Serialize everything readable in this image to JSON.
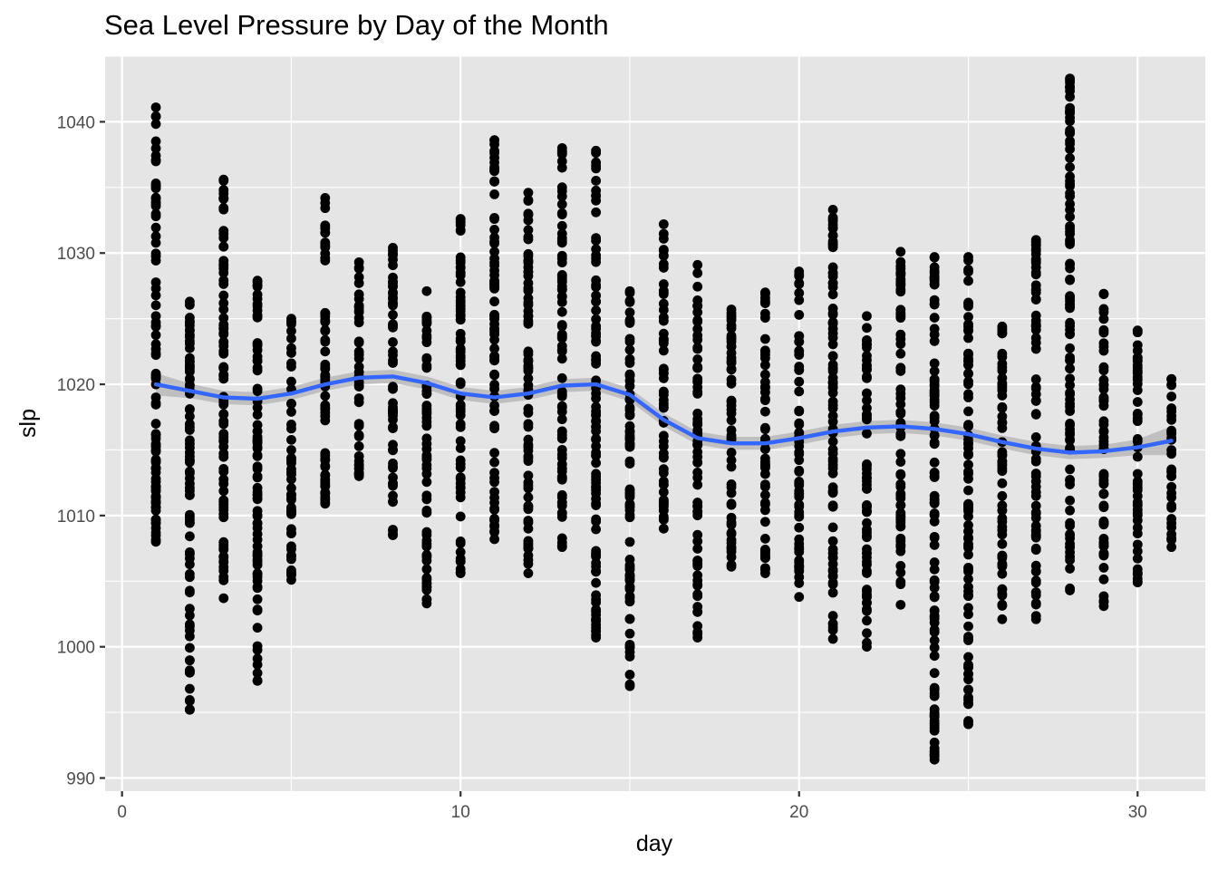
{
  "chart_data": {
    "type": "scatter",
    "title": "Sea Level Pressure by Day of the Month",
    "xlabel": "day",
    "ylabel": "slp",
    "xlim": [
      -0.5,
      32.0
    ],
    "ylim": [
      989.0,
      1045.0
    ],
    "x_ticks": [
      0,
      10,
      20,
      30
    ],
    "y_ticks": [
      990,
      1000,
      1010,
      1020,
      1030,
      1040
    ],
    "grid": true,
    "legend": "none",
    "colors": {
      "panel": "#e5e5e5",
      "grid": "#ffffff",
      "points": "#000000",
      "smooth": "#3366ff",
      "band": "#b2b2b2"
    },
    "point_ranges": [
      {
        "x": 1,
        "low": 1008,
        "high": 1041.1
      },
      {
        "x": 2,
        "low": 995.2,
        "high": 1026.3
      },
      {
        "x": 3,
        "low": 1003.7,
        "high": 1035.6
      },
      {
        "x": 4,
        "low": 997.4,
        "high": 1027.9
      },
      {
        "x": 5,
        "low": 1005.1,
        "high": 1025
      },
      {
        "x": 6,
        "low": 1010.9,
        "high": 1034.2
      },
      {
        "x": 7,
        "low": 1013,
        "high": 1029.3
      },
      {
        "x": 8,
        "low": 1008.5,
        "high": 1030.4
      },
      {
        "x": 9,
        "low": 1003.3,
        "high": 1027.1
      },
      {
        "x": 10,
        "low": 1005.6,
        "high": 1032.6
      },
      {
        "x": 11,
        "low": 1008.2,
        "high": 1038.6
      },
      {
        "x": 12,
        "low": 1005.6,
        "high": 1034.6
      },
      {
        "x": 13,
        "low": 1007.6,
        "high": 1038
      },
      {
        "x": 14,
        "low": 1000.7,
        "high": 1037.8
      },
      {
        "x": 15,
        "low": 997,
        "high": 1027.1
      },
      {
        "x": 16,
        "low": 1009,
        "high": 1032.2
      },
      {
        "x": 17,
        "low": 1000.7,
        "high": 1029.1
      },
      {
        "x": 18,
        "low": 1006.1,
        "high": 1025.7
      },
      {
        "x": 19,
        "low": 1005.6,
        "high": 1027
      },
      {
        "x": 20,
        "low": 1003.8,
        "high": 1028.6
      },
      {
        "x": 21,
        "low": 1000.6,
        "high": 1033.3
      },
      {
        "x": 22,
        "low": 1000,
        "high": 1025.2
      },
      {
        "x": 23,
        "low": 1003.2,
        "high": 1030.1
      },
      {
        "x": 24,
        "low": 991.4,
        "high": 1029.7
      },
      {
        "x": 25,
        "low": 994.1,
        "high": 1029.7
      },
      {
        "x": 26,
        "low": 1002.1,
        "high": 1024.4
      },
      {
        "x": 27,
        "low": 1002.1,
        "high": 1031
      },
      {
        "x": 28,
        "low": 1004.3,
        "high": 1043.3
      },
      {
        "x": 29,
        "low": 1003.1,
        "high": 1026.9
      },
      {
        "x": 30,
        "low": 1004.9,
        "high": 1024.1
      },
      {
        "x": 31,
        "low": 1007.6,
        "high": 1020.4
      }
    ],
    "series": [
      {
        "type": "smooth",
        "x": [
          1,
          2,
          3,
          4,
          5,
          6,
          7,
          8,
          9,
          10,
          11,
          12,
          13,
          14,
          15,
          16,
          17,
          18,
          19,
          20,
          21,
          22,
          23,
          24,
          25,
          26,
          27,
          28,
          29,
          30,
          31
        ],
        "values": [
          1020.0,
          1019.5,
          1019.0,
          1018.9,
          1019.3,
          1020.0,
          1020.5,
          1020.6,
          1020.1,
          1019.3,
          1019.0,
          1019.3,
          1019.9,
          1020.0,
          1019.2,
          1017.3,
          1015.9,
          1015.5,
          1015.5,
          1015.9,
          1016.4,
          1016.7,
          1016.8,
          1016.6,
          1016.2,
          1015.6,
          1015.1,
          1014.8,
          1014.9,
          1015.2,
          1015.7
        ],
        "ci_halfwidth": [
          0.85,
          0.55,
          0.5,
          0.5,
          0.5,
          0.5,
          0.5,
          0.5,
          0.5,
          0.5,
          0.5,
          0.5,
          0.5,
          0.5,
          0.5,
          0.5,
          0.5,
          0.5,
          0.5,
          0.5,
          0.5,
          0.5,
          0.5,
          0.5,
          0.5,
          0.5,
          0.5,
          0.5,
          0.5,
          0.6,
          1.1
        ]
      }
    ]
  }
}
